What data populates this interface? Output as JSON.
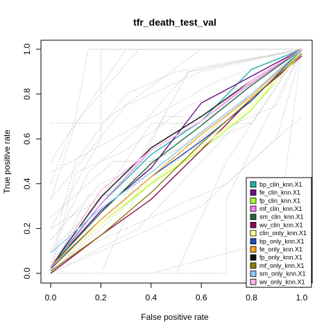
{
  "chart_data": {
    "type": "line",
    "title": "tfr_death_test_val",
    "xlabel": "False positive rate",
    "ylabel": "True positive rate",
    "xlim": [
      0,
      1
    ],
    "ylim": [
      0,
      1
    ],
    "xticks": [
      "0.0",
      "0.2",
      "0.4",
      "0.6",
      "0.8",
      "1.0"
    ],
    "yticks": [
      "0.0",
      "0.2",
      "0.4",
      "0.6",
      "0.8",
      "1.0"
    ],
    "legend_position": "bottom-right",
    "grid": false,
    "series": [
      {
        "name": "bp_clin_knn.X1",
        "color": "#20b2aa",
        "x": [
          0,
          0.2,
          0.4,
          0.6,
          0.8,
          1.0
        ],
        "y": [
          0.03,
          0.31,
          0.53,
          0.68,
          0.91,
          1.0
        ]
      },
      {
        "name": "fe_clin_knn.X1",
        "color": "#6a0d83",
        "x": [
          0,
          0.2,
          0.4,
          0.6,
          0.8,
          1.0
        ],
        "y": [
          0.03,
          0.28,
          0.47,
          0.76,
          0.88,
          1.0
        ]
      },
      {
        "name": "fp_clin_knn.X1",
        "color": "#adff2f",
        "x": [
          0,
          0.2,
          0.4,
          0.6,
          0.8,
          1.0
        ],
        "y": [
          0.02,
          0.22,
          0.4,
          0.55,
          0.73,
          1.0
        ]
      },
      {
        "name": "mf_clin_knn.X1",
        "color": "#ee82ee",
        "x": [
          0,
          0.2,
          0.4,
          0.6,
          0.8,
          1.0
        ],
        "y": [
          0.02,
          0.31,
          0.55,
          0.68,
          0.85,
          1.0
        ]
      },
      {
        "name": "sm_clin_knn.X1",
        "color": "#1f6b3a",
        "x": [
          0,
          0.2,
          0.4,
          0.6,
          0.8,
          1.0
        ],
        "y": [
          0.03,
          0.27,
          0.49,
          0.66,
          0.84,
          1.0
        ]
      },
      {
        "name": "wv_clin_knn.X1",
        "color": "#8b0a50",
        "x": [
          0,
          0.2,
          0.4,
          0.6,
          0.8,
          1.0
        ],
        "y": [
          0.0,
          0.17,
          0.33,
          0.55,
          0.78,
          0.97
        ]
      },
      {
        "name": "clin_only_knn.X1",
        "color": "#ffff99",
        "x": [
          0,
          0.2,
          0.4,
          0.6,
          0.8,
          1.0
        ],
        "y": [
          0.02,
          0.22,
          0.41,
          0.56,
          0.75,
          0.98
        ]
      },
      {
        "name": "bp_only_knn.X1",
        "color": "#1f4fb4",
        "x": [
          0,
          0.2,
          0.4,
          0.6,
          0.8,
          1.0
        ],
        "y": [
          0.02,
          0.24,
          0.43,
          0.59,
          0.77,
          1.0
        ]
      },
      {
        "name": "fe_only_knn.X1",
        "color": "#f5a623",
        "x": [
          0,
          0.2,
          0.4,
          0.6,
          0.8,
          1.0
        ],
        "y": [
          0.03,
          0.24,
          0.43,
          0.62,
          0.79,
          1.0
        ]
      },
      {
        "name": "fp_only_knn.X1",
        "color": "#111111",
        "x": [
          0,
          0.2,
          0.4,
          0.6,
          0.8,
          1.0
        ],
        "y": [
          0.03,
          0.34,
          0.56,
          0.7,
          0.86,
          1.0
        ]
      },
      {
        "name": "mf_only_knn.X1",
        "color": "#8b7d0b",
        "x": [
          0,
          0.2,
          0.4,
          0.6,
          0.8,
          1.0
        ],
        "y": [
          0.01,
          0.17,
          0.36,
          0.58,
          0.78,
          0.98
        ]
      },
      {
        "name": "sm_only_knn.X1",
        "color": "#87cefa",
        "x": [
          0,
          0.2,
          0.4,
          0.6,
          0.8,
          1.0
        ],
        "y": [
          0.09,
          0.29,
          0.45,
          0.63,
          0.8,
          1.0
        ]
      },
      {
        "name": "wv_only_knn.X1",
        "color": "#ffb6e6",
        "x": [
          0,
          0.2,
          0.4,
          0.6,
          0.8,
          1.0
        ],
        "y": [
          0.03,
          0.37,
          0.55,
          0.68,
          0.86,
          1.0
        ]
      }
    ],
    "background_series": [
      {
        "x": [
          0,
          0.2,
          0.6,
          1.0
        ],
        "y": [
          0.67,
          0.67,
          1.0,
          1.0
        ]
      },
      {
        "x": [
          0,
          0.1,
          0.3,
          1.0
        ],
        "y": [
          0.33,
          0.67,
          1.0,
          1.0
        ]
      },
      {
        "x": [
          0,
          0.2,
          0.2,
          1.0
        ],
        "y": [
          0.2,
          0.6,
          1.0,
          1.0
        ]
      },
      {
        "x": [
          0,
          0.05,
          0.1,
          0.3,
          0.5,
          1.0
        ],
        "y": [
          0.0,
          0.3,
          0.5,
          0.8,
          0.9,
          1.0
        ]
      },
      {
        "x": [
          0,
          0.1,
          0.35,
          1.0
        ],
        "y": [
          0.5,
          0.67,
          1.0,
          1.0
        ]
      },
      {
        "x": [
          0,
          0.15,
          0.35,
          0.55,
          1.0
        ],
        "y": [
          0.1,
          0.45,
          0.65,
          0.9,
          1.0
        ]
      },
      {
        "x": [
          0,
          0.3,
          0.6,
          1.0
        ],
        "y": [
          0.33,
          0.75,
          0.9,
          1.0
        ]
      },
      {
        "x": [
          0,
          0.1,
          0.3,
          0.55,
          0.8,
          1.0
        ],
        "y": [
          0.0,
          0.45,
          0.55,
          0.75,
          0.85,
          1.0
        ]
      },
      {
        "x": [
          0,
          0.25,
          0.5,
          0.75,
          1.0
        ],
        "y": [
          0.25,
          0.5,
          0.5,
          0.75,
          1.0
        ]
      },
      {
        "x": [
          0,
          0.4,
          0.6,
          1.0
        ],
        "y": [
          0.0,
          0.67,
          0.67,
          1.0
        ]
      },
      {
        "x": [
          0,
          0.3,
          0.5,
          0.8,
          1.0
        ],
        "y": [
          0.0,
          0.33,
          0.67,
          0.67,
          1.0
        ]
      },
      {
        "x": [
          0,
          0.35,
          0.6,
          0.9,
          1.0
        ],
        "y": [
          0.0,
          0.2,
          0.5,
          0.85,
          1.0
        ]
      },
      {
        "x": [
          0,
          0.5,
          0.7,
          1.0
        ],
        "y": [
          0.0,
          0.0,
          0.5,
          1.0
        ]
      },
      {
        "x": [
          0,
          0.7,
          0.7,
          1.0
        ],
        "y": [
          0.0,
          0.0,
          0.33,
          1.0
        ]
      },
      {
        "x": [
          0,
          0.4,
          0.7,
          0.9,
          1.0
        ],
        "y": [
          0.05,
          0.25,
          0.4,
          0.6,
          1.0
        ]
      },
      {
        "x": [
          0,
          0.2,
          0.5,
          0.8,
          1.0
        ],
        "y": [
          0.15,
          0.4,
          0.55,
          0.8,
          1.0
        ]
      },
      {
        "x": [
          0,
          0.6,
          0.8,
          1.0
        ],
        "y": [
          0.0,
          0.3,
          0.5,
          0.7
        ]
      },
      {
        "x": [
          0,
          0.2,
          0.4,
          0.9,
          1.0
        ],
        "y": [
          0.0,
          0.0,
          0.5,
          0.75,
          1.0
        ]
      },
      {
        "x": [
          0,
          0.1,
          0.15,
          0.5,
          1.0
        ],
        "y": [
          0.4,
          0.7,
          1.0,
          1.0,
          1.0
        ]
      },
      {
        "x": [
          0,
          0.45,
          0.8,
          1.0
        ],
        "y": [
          0.2,
          0.5,
          0.67,
          1.0
        ]
      },
      {
        "x": [
          0,
          0.35,
          0.55,
          1.0
        ],
        "y": [
          0.1,
          0.5,
          0.9,
          1.0
        ]
      },
      {
        "x": [
          0,
          0.25,
          0.65,
          1.0
        ],
        "y": [
          0.45,
          0.6,
          0.85,
          1.0
        ]
      },
      {
        "x": [
          0,
          0.15,
          0.3,
          0.45,
          0.6,
          1.0
        ],
        "y": [
          0.0,
          0.35,
          0.35,
          0.7,
          0.7,
          1.0
        ]
      },
      {
        "x": [
          0,
          0.05,
          0.4,
          0.9,
          1.0
        ],
        "y": [
          0.0,
          0.0,
          0.0,
          0.15,
          1.0
        ]
      }
    ],
    "background_color": "#c8c8c8"
  }
}
